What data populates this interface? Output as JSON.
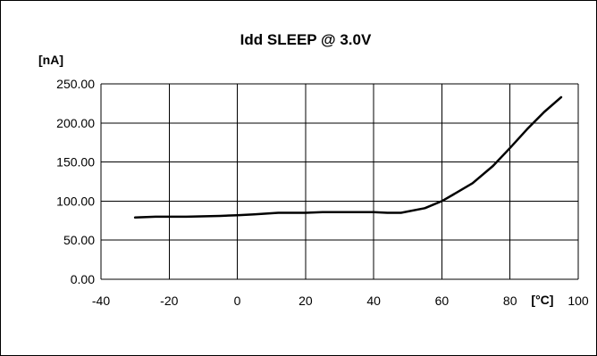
{
  "chart_data": {
    "type": "line",
    "title": "Idd SLEEP  @ 3.0V",
    "ylabel": "[nA]",
    "xlabel": "[°C]",
    "xlim": [
      -40,
      100
    ],
    "ylim": [
      0,
      250
    ],
    "grid": true,
    "x_ticks": [
      -40,
      -20,
      0,
      20,
      40,
      60,
      80,
      100
    ],
    "x_tick_labels": [
      "-40",
      "-20",
      "0",
      "20",
      "40",
      "60",
      "80",
      "100"
    ],
    "y_ticks": [
      0,
      50,
      100,
      150,
      200,
      250
    ],
    "y_tick_labels": [
      "0.00",
      "50.00",
      "100.00",
      "150.00",
      "200.00",
      "250.00"
    ],
    "series": [
      {
        "color": "#000000",
        "x": [
          -30,
          -24,
          -15,
          -5,
          0,
          5,
          12,
          20,
          25,
          33,
          40,
          44,
          48,
          55,
          60,
          64,
          69,
          75,
          80,
          85,
          90,
          95
        ],
        "y": [
          79,
          80,
          80,
          81,
          82,
          83,
          85,
          85,
          86,
          86,
          86,
          85,
          85,
          91,
          100,
          110,
          123,
          145,
          168,
          192,
          214,
          233
        ]
      }
    ]
  }
}
